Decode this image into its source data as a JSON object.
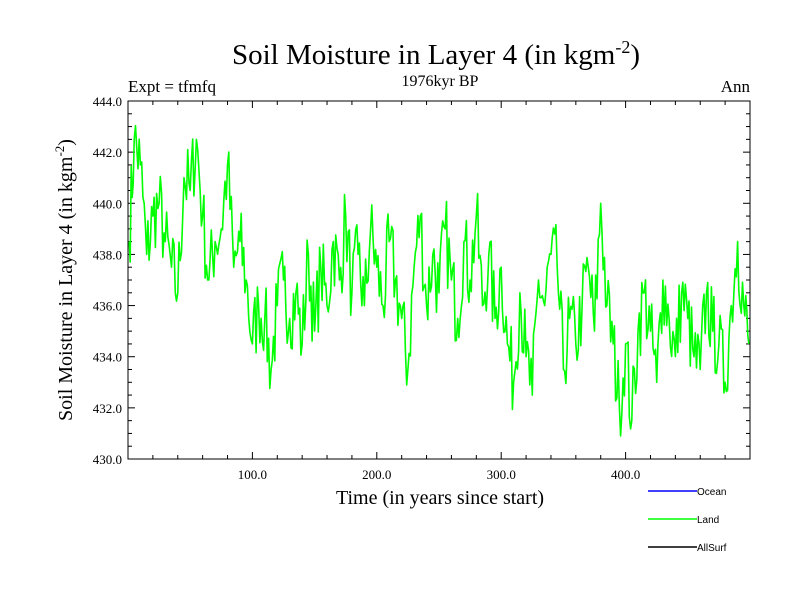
{
  "chart_data": {
    "type": "line",
    "title_main": "Soil Moisture in Layer 4 (in kgm",
    "title_sup": "-2",
    "title_close": ")",
    "subtitle": "1976kyr BP",
    "left_label": "Expt = tfmfq",
    "right_label": "Ann",
    "xlabel": "Time (in years since start)",
    "ylabel_main": "Soil Moisture in Layer 4 (in kgm",
    "ylabel_sup": "-2",
    "ylabel_close": ")",
    "xlim": [
      0,
      500
    ],
    "ylim": [
      430,
      444
    ],
    "x_ticks": [
      100,
      200,
      300,
      400
    ],
    "x_tick_labels": [
      "100.0",
      "200.0",
      "300.0",
      "400.0"
    ],
    "y_ticks": [
      430,
      432,
      434,
      436,
      438,
      440,
      442,
      444
    ],
    "y_tick_labels": [
      "430.0",
      "432.0",
      "434.0",
      "436.0",
      "438.0",
      "440.0",
      "442.0",
      "444.0"
    ],
    "legend": [
      {
        "name": "Ocean",
        "color": "#0000ff"
      },
      {
        "name": "Land",
        "color": "#00ff00"
      },
      {
        "name": "AllSurf",
        "color": "#000000"
      }
    ],
    "series": [
      {
        "name": "Land",
        "color": "#00ff00",
        "x": [
          1,
          5,
          10,
          15,
          20,
          25,
          30,
          35,
          40,
          45,
          50,
          55,
          60,
          65,
          70,
          75,
          80,
          85,
          90,
          95,
          100,
          105,
          110,
          115,
          120,
          125,
          130,
          135,
          140,
          145,
          150,
          155,
          160,
          165,
          170,
          175,
          180,
          185,
          190,
          195,
          200,
          205,
          210,
          215,
          220,
          225,
          230,
          235,
          240,
          245,
          250,
          255,
          260,
          265,
          270,
          275,
          280,
          285,
          290,
          295,
          300,
          305,
          310,
          315,
          320,
          325,
          330,
          335,
          340,
          345,
          350,
          355,
          360,
          365,
          370,
          375,
          380,
          385,
          390,
          395,
          400,
          405,
          410,
          415,
          420,
          425,
          430,
          435,
          440,
          445,
          450,
          455,
          460,
          465,
          470,
          475,
          480,
          485,
          490,
          495,
          499
        ],
        "values": [
          438.5,
          442.5,
          441.5,
          438.0,
          439.5,
          440.0,
          438.5,
          437.5,
          436.5,
          441.0,
          440.5,
          442.5,
          439.5,
          437.0,
          438.5,
          439.0,
          441.5,
          437.5,
          438.5,
          437.0,
          434.5,
          436.0,
          435.5,
          433.5,
          436.0,
          437.0,
          435.5,
          436.5,
          434.5,
          438.0,
          435.0,
          437.5,
          436.0,
          438.5,
          437.0,
          439.5,
          436.5,
          438.0,
          436.0,
          439.0,
          437.5,
          436.0,
          438.5,
          437.0,
          435.5,
          433.5,
          437.5,
          439.5,
          436.0,
          438.0,
          436.5,
          439.0,
          437.0,
          435.5,
          438.5,
          437.0,
          439.5,
          436.0,
          438.0,
          435.5,
          437.5,
          434.5,
          433.0,
          436.5,
          434.0,
          432.5,
          437.0,
          436.0,
          438.0,
          437.5,
          433.5,
          435.5,
          434.5,
          436.0,
          437.5,
          435.0,
          440.0,
          436.0,
          434.5,
          432.0,
          434.5,
          431.5,
          435.0,
          436.5,
          435.0,
          433.0,
          437.0,
          435.5,
          434.0,
          436.5,
          435.5,
          434.0,
          433.5,
          436.5,
          435.0,
          434.5,
          433.0,
          436.0,
          438.5,
          436.0,
          434.5
        ]
      }
    ]
  }
}
